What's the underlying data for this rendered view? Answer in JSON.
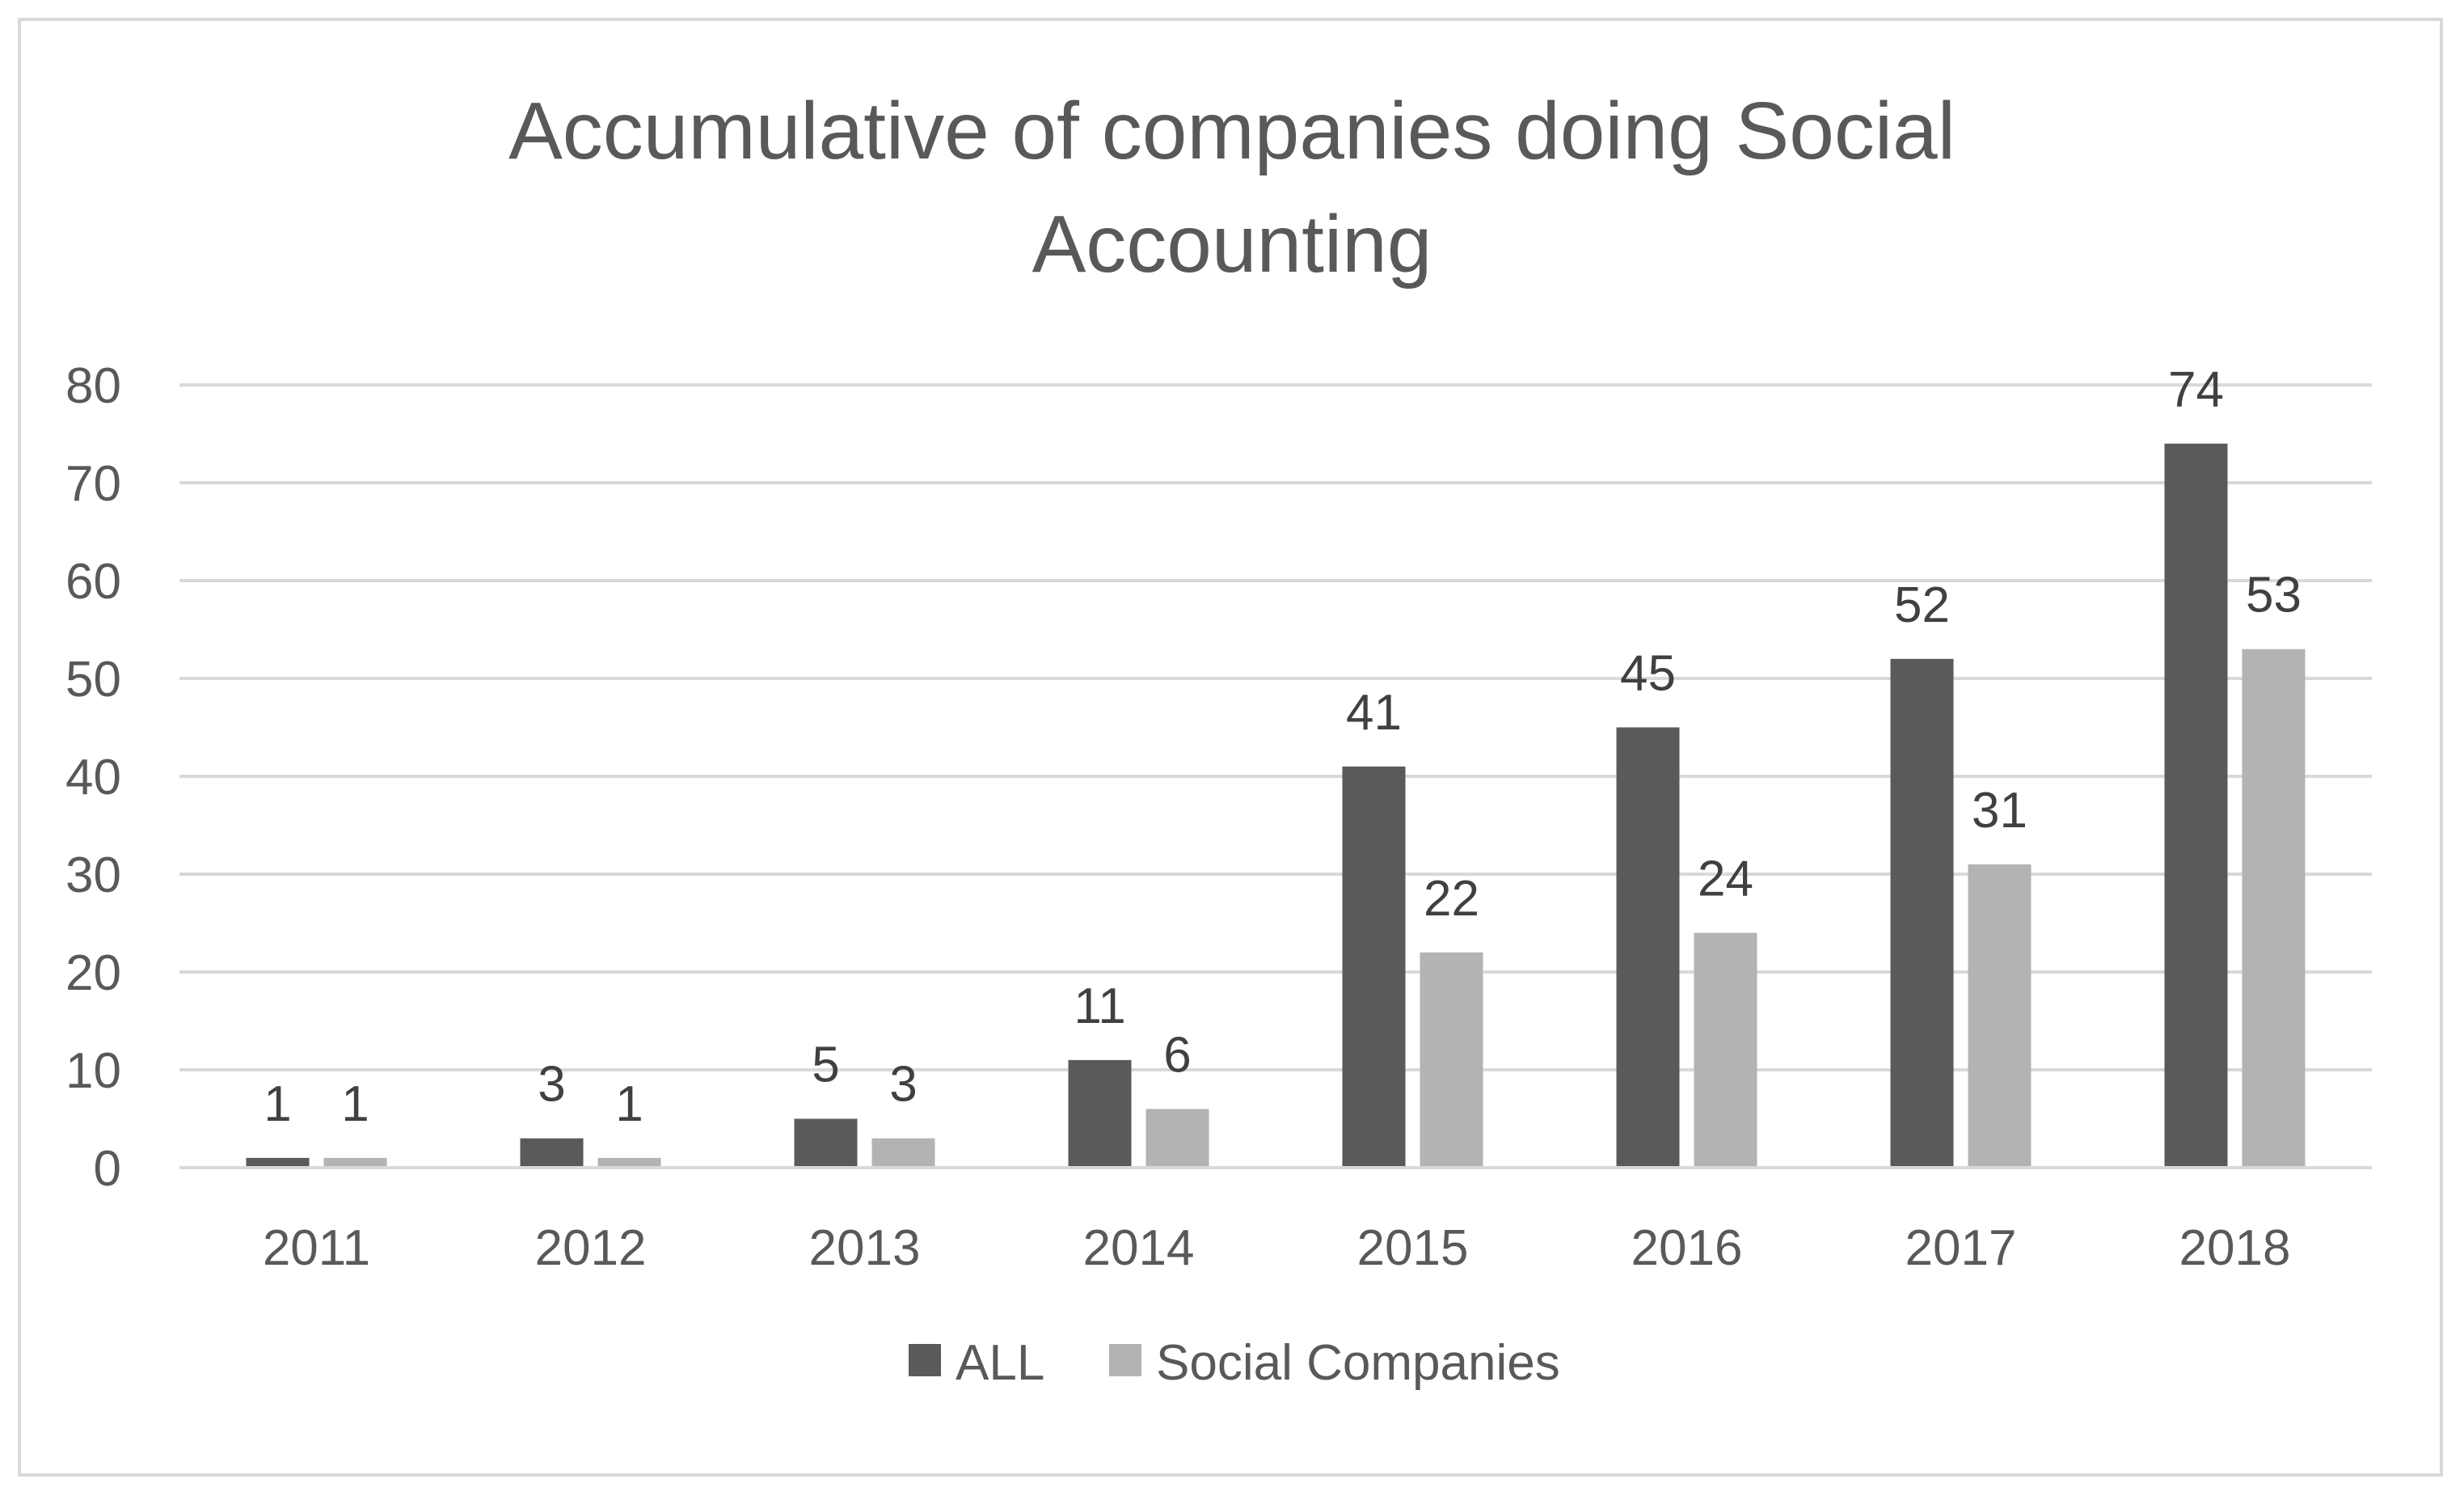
{
  "chart_data": {
    "type": "bar",
    "title_lines": [
      "Accumulative of companies doing Social",
      "Accounting"
    ],
    "categories": [
      "2011",
      "2012",
      "2013",
      "2014",
      "2015",
      "2016",
      "2017",
      "2018"
    ],
    "series": [
      {
        "name": "ALL",
        "color": "#5a5a5a",
        "values": [
          1,
          3,
          5,
          11,
          41,
          45,
          52,
          74
        ]
      },
      {
        "name": "Social Companies",
        "color": "#b3b3b3",
        "values": [
          1,
          1,
          3,
          6,
          22,
          24,
          31,
          53
        ]
      }
    ],
    "ylim": [
      0,
      80
    ],
    "yticks": [
      0,
      10,
      20,
      30,
      40,
      50,
      60,
      70,
      80
    ],
    "grid": true,
    "legend": "bottom",
    "xlabel": "",
    "ylabel": ""
  }
}
